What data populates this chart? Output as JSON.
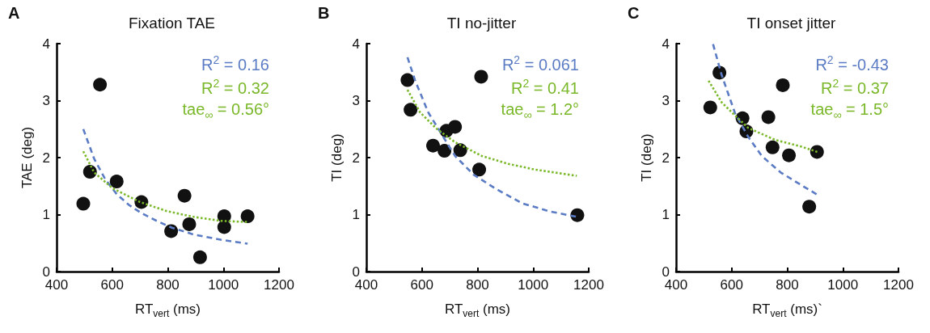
{
  "chart_data": [
    {
      "type": "scatter",
      "title": "Fixation TAE",
      "xlabel": "RT$_{vert}$ (ms)",
      "ylabel": "TAE (deg)",
      "annotations": [
        "A",
        "R$^{2}$ = 0.16",
        "R$^{2}$ = 0.32",
        "tae$_{∞}$ = 0.56°"
      ],
      "xlim": [
        400,
        1200
      ],
      "ylim": [
        0,
        4
      ],
      "xticks": [
        400,
        600,
        800,
        1000,
        1200
      ],
      "yticks": [
        0,
        1,
        2,
        3,
        4
      ],
      "grid": false,
      "marker": "circle",
      "series": [
        {
          "color": "#111111",
          "x": [
            496,
            556,
            520,
            616,
            705,
            860,
            812,
            877,
            1003,
            1003,
            1087,
            916
          ],
          "values": [
            1.19,
            3.28,
            1.75,
            1.58,
            1.22,
            1.33,
            0.71,
            0.83,
            0.97,
            0.78,
            0.97,
            0.25
          ]
        },
        {
          "type": "line",
          "color": "#5b7cc4",
          "line_style": "dashed",
          "marker": "none",
          "x": [
            496,
            535,
            575,
            616,
            660,
            704,
            760,
            815,
            893,
            990,
            1087
          ],
          "values": [
            2.5,
            1.98,
            1.62,
            1.36,
            1.17,
            1.03,
            0.89,
            0.77,
            0.65,
            0.56,
            0.49
          ]
        },
        {
          "type": "line",
          "color": "#7ab829",
          "line_style": "dotted",
          "marker": "none",
          "x": [
            496,
            535,
            602,
            700,
            797,
            893,
            990,
            1087
          ],
          "values": [
            2.11,
            1.74,
            1.46,
            1.22,
            1.06,
            0.96,
            0.89,
            0.87
          ]
        }
      ]
    },
    {
      "type": "scatter",
      "title": "TI no-jitter",
      "xlabel": "RT$_{vert}$ (ms)",
      "ylabel": "TI (deg)",
      "annotations": [
        "B",
        "R$^{2}$ = 0.061",
        "R$^{2}$ = 0.41",
        "tae$_{∞}$ = 1.2°"
      ],
      "xlim": [
        400,
        1200
      ],
      "ylim": [
        0,
        4
      ],
      "xticks": [
        400,
        600,
        800,
        1000,
        1200
      ],
      "yticks": [
        0,
        1,
        2,
        3,
        4
      ],
      "grid": false,
      "marker": "circle",
      "series": [
        {
          "color": "#111111",
          "x": [
            548,
            559,
            813,
            640,
            681,
            688,
            719,
            738,
            806,
            1159
          ],
          "values": [
            3.36,
            2.84,
            3.42,
            2.21,
            2.12,
            2.47,
            2.54,
            2.13,
            1.79,
            0.99
          ]
        },
        {
          "type": "line",
          "color": "#5b7cc4",
          "line_style": "dashed",
          "marker": "none",
          "x": [
            548,
            575,
            623,
            671,
            719,
            786,
            863,
            960,
            1056,
            1157
          ],
          "values": [
            3.76,
            3.36,
            2.79,
            2.41,
            2.03,
            1.7,
            1.46,
            1.2,
            1.06,
            0.96
          ]
        },
        {
          "type": "line",
          "color": "#7ab829",
          "line_style": "dotted",
          "marker": "none",
          "x": [
            548,
            594,
            652,
            719,
            815,
            911,
            1007,
            1157
          ],
          "values": [
            3.19,
            2.79,
            2.51,
            2.27,
            2.03,
            1.89,
            1.79,
            1.68
          ]
        }
      ]
    },
    {
      "type": "scatter",
      "title": "TI onset jitter",
      "xlabel": "RT$_{vert}$ (ms)`",
      "ylabel": "TI (deg)",
      "annotations": [
        "C",
        "R$^{2}$ = -0.43",
        "R$^{2}$ = 0.37",
        "tae$_{∞}$ = 1.5°"
      ],
      "xlim": [
        400,
        1200
      ],
      "ylim": [
        0,
        4
      ],
      "xticks": [
        400,
        600,
        800,
        1000,
        1200
      ],
      "yticks": [
        0,
        1,
        2,
        3,
        4
      ],
      "grid": false,
      "marker": "circle",
      "series": [
        {
          "color": "#111111",
          "x": [
            523,
            556,
            639,
            653,
            732,
            747,
            784,
            806,
            907,
            879
          ],
          "values": [
            2.88,
            3.49,
            2.69,
            2.46,
            2.71,
            2.18,
            3.27,
            2.04,
            2.1,
            1.14
          ]
        },
        {
          "type": "line",
          "color": "#5b7cc4",
          "line_style": "dashed",
          "marker": "none",
          "x": [
            533,
            564,
            612,
            660,
            708,
            776,
            853,
            908
          ],
          "values": [
            3.99,
            3.45,
            2.78,
            2.36,
            2.03,
            1.74,
            1.51,
            1.35
          ]
        },
        {
          "type": "line",
          "color": "#7ab829",
          "line_style": "dotted",
          "marker": "none",
          "x": [
            517,
            564,
            612,
            660,
            757,
            853,
            908
          ],
          "values": [
            3.35,
            2.97,
            2.74,
            2.52,
            2.31,
            2.19,
            2.1
          ]
        }
      ]
    }
  ]
}
